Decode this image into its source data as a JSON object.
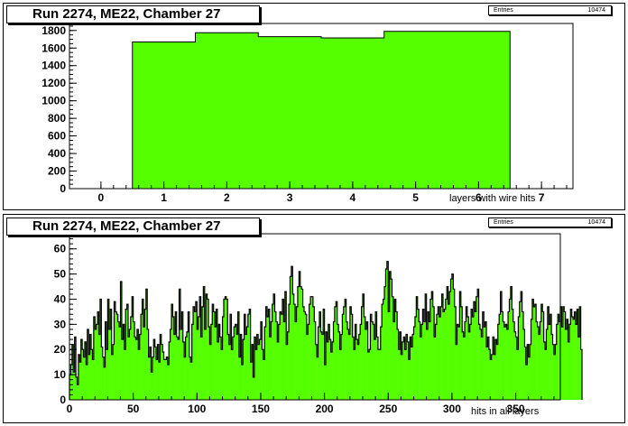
{
  "charts": [
    {
      "title": "Run 2274, ME22, Chamber 27",
      "stats": {
        "label": "Entries",
        "value": "10474"
      },
      "xlabel": "layers with wire hits",
      "chart_data": {
        "type": "bar",
        "title": "Run 2274, ME22, Chamber 27",
        "xlabel": "layers with wire hits",
        "ylabel": "",
        "bin_edges": [
          0.5,
          1.5,
          2.5,
          3.5,
          4.5,
          5.5,
          6.5
        ],
        "values": [
          1670,
          1775,
          1730,
          1715,
          1790,
          1790
        ],
        "xlim": [
          -0.5,
          7.5
        ],
        "ylim": [
          0,
          1880
        ],
        "xticks": [
          0,
          1,
          2,
          3,
          4,
          5,
          6,
          7
        ],
        "yticks": [
          0,
          200,
          400,
          600,
          800,
          1000,
          1200,
          1400,
          1600,
          1800
        ],
        "fill_color": "#55ff00"
      }
    },
    {
      "title": "Run 2274, ME22, Chamber 27",
      "stats": {
        "label": "Entries",
        "value": "10474"
      },
      "xlabel": "hits in all layers",
      "chart_data": {
        "type": "bar",
        "title": "Run 2274, ME22, Chamber 27",
        "xlabel": "hits in all layers",
        "ylabel": "",
        "x_start": 0,
        "bin_width": 1,
        "values": [
          10,
          14,
          22,
          11,
          25,
          9,
          6,
          18,
          15,
          24,
          20,
          17,
          23,
          14,
          28,
          18,
          26,
          20,
          16,
          33,
          28,
          30,
          35,
          26,
          40,
          21,
          17,
          13,
          31,
          20,
          40,
          28,
          36,
          18,
          22,
          39,
          35,
          34,
          31,
          29,
          47,
          24,
          30,
          20,
          36,
          38,
          25,
          28,
          33,
          41,
          31,
          25,
          24,
          28,
          20,
          26,
          34,
          40,
          29,
          36,
          44,
          28,
          17,
          21,
          11,
          17,
          24,
          21,
          16,
          22,
          15,
          26,
          22,
          19,
          16,
          16,
          17,
          14,
          23,
          28,
          38,
          33,
          26,
          35,
          25,
          24,
          44,
          28,
          35,
          23,
          17,
          25,
          27,
          35,
          17,
          15,
          30,
          37,
          35,
          39,
          28,
          33,
          41,
          25,
          37,
          45,
          28,
          42,
          40,
          29,
          22,
          30,
          38,
          35,
          29,
          36,
          23,
          30,
          25,
          20,
          33,
          40,
          41,
          40,
          26,
          22,
          34,
          20,
          25,
          29,
          30,
          26,
          35,
          17,
          26,
          14,
          24,
          34,
          26,
          29,
          34,
          36,
          15,
          22,
          9,
          25,
          20,
          26,
          22,
          24,
          31,
          20,
          16,
          29,
          37,
          33,
          36,
          25,
          31,
          38,
          42,
          35,
          31,
          23,
          30,
          35,
          34,
          40,
          31,
          43,
          22,
          27,
          38,
          49,
          53,
          42,
          38,
          31,
          37,
          45,
          51,
          45,
          44,
          37,
          35,
          34,
          26,
          30,
          38,
          41,
          41,
          37,
          31,
          22,
          17,
          29,
          35,
          27,
          26,
          36,
          14,
          27,
          23,
          30,
          24,
          19,
          23,
          31,
          37,
          39,
          30,
          27,
          20,
          26,
          34,
          37,
          40,
          31,
          28,
          26,
          37,
          34,
          25,
          20,
          30,
          24,
          22,
          26,
          30,
          37,
          42,
          33,
          28,
          31,
          19,
          20,
          34,
          31,
          30,
          24,
          35,
          25,
          20,
          20,
          29,
          38,
          40,
          45,
          52,
          55,
          35,
          51,
          48,
          41,
          31,
          40,
          35,
          28,
          20,
          27,
          18,
          23,
          25,
          20,
          26,
          23,
          16,
          25,
          21,
          26,
          29,
          33,
          41,
          36,
          31,
          25,
          30,
          36,
          31,
          42,
          28,
          35,
          31,
          40,
          43,
          37,
          25,
          30,
          34,
          37,
          33,
          37,
          42,
          35,
          36,
          40,
          45,
          38,
          43,
          48,
          50,
          44,
          37,
          22,
          30,
          29,
          43,
          37,
          27,
          25,
          31,
          37,
          33,
          27,
          30,
          36,
          33,
          39,
          35,
          41,
          44,
          30,
          28,
          25,
          35,
          29,
          31,
          21,
          25,
          20,
          16,
          18,
          25,
          18,
          24,
          22,
          30,
          34,
          43,
          35,
          31,
          29,
          30,
          28,
          35,
          40,
          45,
          36,
          31,
          27,
          25,
          20,
          33,
          39,
          43,
          35,
          28,
          21,
          14,
          22,
          17,
          22,
          32,
          40,
          37,
          38,
          31,
          29,
          26,
          31,
          38,
          35,
          23,
          20,
          28,
          37,
          30,
          34,
          26,
          22,
          18,
          22,
          30,
          34,
          31,
          37,
          29,
          37,
          35,
          28,
          32,
          23,
          30,
          36,
          33,
          32,
          35,
          30,
          36,
          25,
          37,
          20
        ],
        "xlim": [
          0,
          385
        ],
        "ylim": [
          0,
          66
        ],
        "xticks": [
          0,
          50,
          100,
          150,
          200,
          250,
          300,
          350
        ],
        "yticks": [
          0,
          10,
          20,
          30,
          40,
          50,
          60
        ],
        "fill_color": "#55ff00"
      }
    }
  ]
}
